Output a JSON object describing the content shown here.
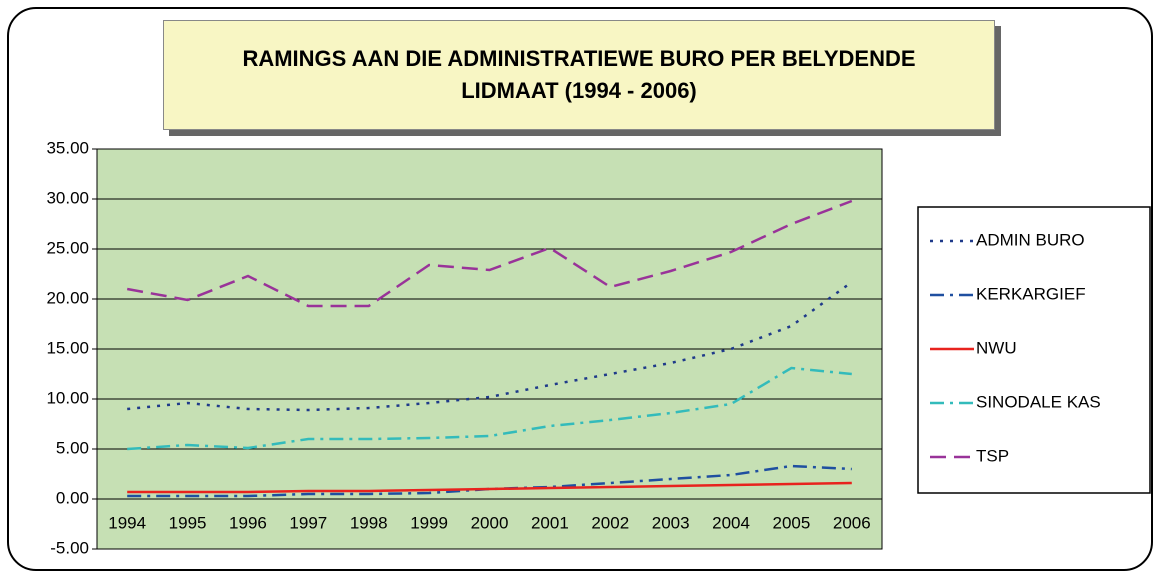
{
  "chart_data": {
    "type": "line",
    "title": "RAMINGS AAN DIE ADMINISTRATIEWE BURO PER BELYDENDE LIDMAAT (1994 - 2006)",
    "categories": [
      "1994",
      "1995",
      "1996",
      "1997",
      "1998",
      "1999",
      "2000",
      "2001",
      "2002",
      "2003",
      "2004",
      "2005",
      "2006"
    ],
    "series": [
      {
        "name": "ADMIN BURO",
        "color": "#1f3a8a",
        "line_style": "dotted",
        "values": [
          9.0,
          9.6,
          9.0,
          8.9,
          9.1,
          9.6,
          10.2,
          11.4,
          12.5,
          13.6,
          15.0,
          17.3,
          21.7
        ]
      },
      {
        "name": "KERKARGIEF",
        "color": "#1f4fa0",
        "line_style": "dashdot",
        "values": [
          0.3,
          0.3,
          0.3,
          0.5,
          0.5,
          0.6,
          1.0,
          1.2,
          1.6,
          2.0,
          2.4,
          3.3,
          3.0
        ]
      },
      {
        "name": "NWU",
        "color": "#e8231e",
        "line_style": "solid",
        "values": [
          0.7,
          0.7,
          0.7,
          0.8,
          0.8,
          0.9,
          1.0,
          1.1,
          1.2,
          1.3,
          1.4,
          1.5,
          1.6
        ]
      },
      {
        "name": "SINODALE KAS",
        "color": "#33bbbb",
        "line_style": "dashdot",
        "values": [
          5.0,
          5.4,
          5.1,
          6.0,
          6.0,
          6.1,
          6.3,
          7.3,
          7.9,
          8.6,
          9.5,
          13.1,
          12.5
        ]
      },
      {
        "name": "TSP",
        "color": "#993399",
        "line_style": "dashed",
        "values": [
          21.0,
          19.9,
          22.3,
          19.3,
          19.3,
          23.4,
          22.9,
          25.1,
          21.2,
          22.8,
          24.7,
          27.5,
          29.8
        ]
      }
    ],
    "ylim": [
      -5,
      35
    ],
    "yticks": [
      {
        "value": -5,
        "label": "-5.00"
      },
      {
        "value": 0,
        "label": "0.00"
      },
      {
        "value": 5,
        "label": "5.00"
      },
      {
        "value": 10,
        "label": "10.00"
      },
      {
        "value": 15,
        "label": "15.00"
      },
      {
        "value": 20,
        "label": "20.00"
      },
      {
        "value": 25,
        "label": "25.00"
      },
      {
        "value": 30,
        "label": "30.00"
      },
      {
        "value": 35,
        "label": "35.00"
      }
    ],
    "grid": true,
    "legend": "right",
    "plot_background": "#c6e0b4"
  }
}
